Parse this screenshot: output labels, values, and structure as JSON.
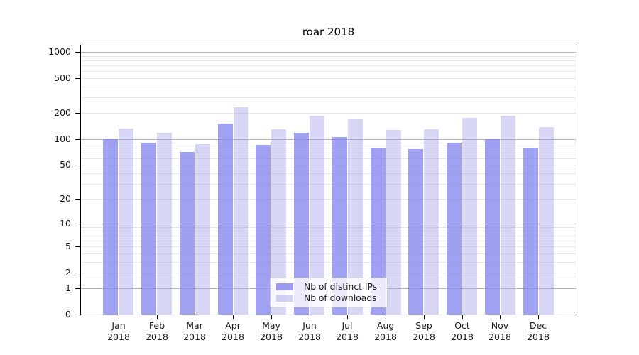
{
  "chart_data": {
    "type": "bar",
    "title": "roar 2018",
    "categories": [
      "Jan",
      "Feb",
      "Mar",
      "Apr",
      "May",
      "Jun",
      "Jul",
      "Aug",
      "Sep",
      "Oct",
      "Nov",
      "Dec"
    ],
    "year_label": "2018",
    "series": [
      {
        "name": "Nb of distinct IPs",
        "color": "#8282f0",
        "alpha": 0.75,
        "apparent_color": "#a5a5f0",
        "values": [
          100,
          90,
          71,
          151,
          85,
          118,
          106,
          80,
          76,
          90,
          99,
          80
        ]
      },
      {
        "name": "Nb of downloads",
        "color": "#a0a0e6",
        "alpha": 0.42,
        "apparent_color": "#d9d9f8",
        "values": [
          132,
          118,
          88,
          234,
          129,
          187,
          168,
          127,
          129,
          176,
          187,
          137
        ]
      }
    ],
    "yscale": "log1p",
    "ylim": [
      0,
      1000
    ],
    "y_ticks": [
      0,
      1,
      2,
      5,
      10,
      20,
      50,
      100,
      200,
      500,
      1000
    ],
    "grid": true,
    "legend_position": "lower center"
  },
  "colors": {
    "background": "#ffffff",
    "axis": "#000000",
    "text": "#1a1a1a",
    "grid_major": "#b3b3b3",
    "grid_minor": "#e7e7e7"
  }
}
